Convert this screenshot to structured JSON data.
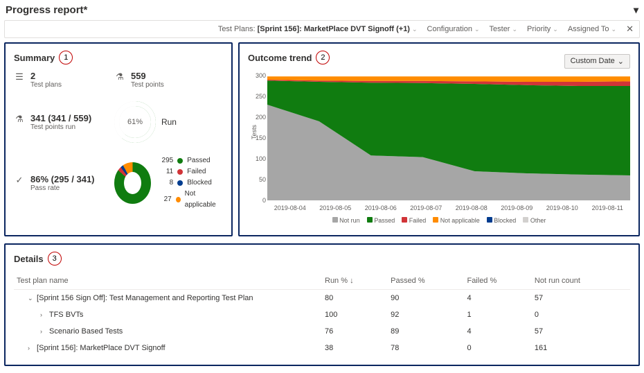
{
  "header": {
    "title": "Progress report*"
  },
  "toolbar": {
    "testPlansLabel": "Test Plans:",
    "testPlansValue": "[Sprint 156]: MarketPlace DVT Signoff (+1)",
    "items": [
      "Configuration",
      "Tester",
      "Priority",
      "Assigned To"
    ]
  },
  "summary": {
    "title": "Summary",
    "badge": "1",
    "testPlans": {
      "value": "2",
      "label": "Test plans"
    },
    "testPoints": {
      "value": "559",
      "label": "Test points"
    },
    "testPointsRun": {
      "value": "341 (341 / 559)",
      "label": "Test points run"
    },
    "runRing": {
      "percent": 61,
      "label": "Run",
      "text": "61%",
      "fg": "#107c10",
      "bg": "#e1dfdd"
    },
    "passRate": {
      "value": "86% (295 / 341)",
      "label": "Pass rate"
    },
    "donut": {
      "slices": [
        {
          "count": 295,
          "label": "Passed",
          "color": "#107c10",
          "pct": 86.5
        },
        {
          "count": 11,
          "label": "Failed",
          "color": "#d13438",
          "pct": 3.2
        },
        {
          "count": 8,
          "label": "Blocked",
          "color": "#003c8f",
          "pct": 2.4
        },
        {
          "count": 27,
          "label": "Not applicable",
          "color": "#ff8c00",
          "pct": 7.9
        }
      ]
    }
  },
  "trend": {
    "title": "Outcome trend",
    "badge": "2",
    "dateLabel": "Custom Date",
    "yLabel": "Tests",
    "yMax": 300,
    "yStep": 50,
    "xLabels": [
      "2019-08-04",
      "2019-08-05",
      "2019-08-06",
      "2019-08-07",
      "2019-08-08",
      "2019-08-09",
      "2019-08-10",
      "2019-08-11"
    ],
    "colors": {
      "notrun": "#a6a6a6",
      "passed": "#107c10",
      "failed": "#d13438",
      "na": "#ff8c00",
      "blocked": "#003c8f",
      "other": "#d2d0ce"
    },
    "series": {
      "notrun": [
        230,
        190,
        108,
        104,
        70,
        65,
        62,
        60
      ],
      "passed": [
        58,
        95,
        175,
        178,
        210,
        212,
        213,
        215
      ],
      "failed": [
        2,
        3,
        4,
        5,
        6,
        8,
        10,
        11
      ],
      "na": [
        8,
        10,
        11,
        11,
        12,
        13,
        13,
        12
      ],
      "blocked": [
        0,
        0,
        0,
        0,
        0,
        0,
        0,
        0
      ],
      "other": [
        0,
        0,
        0,
        0,
        0,
        0,
        0,
        0
      ]
    },
    "legend": [
      "Not run",
      "Passed",
      "Failed",
      "Not applicable",
      "Blocked",
      "Other"
    ]
  },
  "details": {
    "title": "Details",
    "badge": "3",
    "columns": [
      "Test plan name",
      "Run % ↓",
      "Passed %",
      "Failed %",
      "Not run count"
    ],
    "rows": [
      {
        "caret": "v",
        "indent": 1,
        "name": "[Sprint 156 Sign Off]: Test Management and Reporting Test Plan",
        "run": "80",
        "passed": "90",
        "failed": "4",
        "notrun": "57"
      },
      {
        "caret": ">",
        "indent": 2,
        "name": "TFS BVTs",
        "run": "100",
        "passed": "92",
        "failed": "1",
        "notrun": "0"
      },
      {
        "caret": ">",
        "indent": 2,
        "name": "Scenario Based Tests",
        "run": "76",
        "passed": "89",
        "failed": "4",
        "notrun": "57"
      },
      {
        "caret": ">",
        "indent": 1,
        "name": "[Sprint 156]: MarketPlace DVT Signoff",
        "run": "38",
        "passed": "78",
        "failed": "0",
        "notrun": "161"
      }
    ]
  }
}
